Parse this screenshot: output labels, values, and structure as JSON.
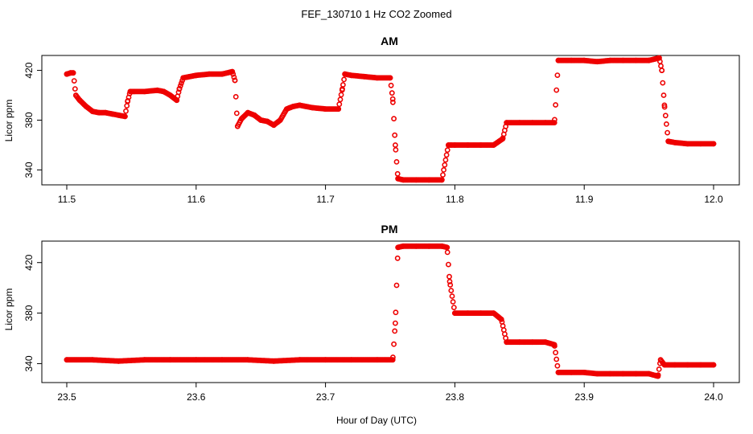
{
  "title": "FEF_130710  1 Hz CO2 Zoomed",
  "xlabel": "Hour of Day (UTC)",
  "colors": {
    "points": "#ee0000",
    "axes": "#000000",
    "background": "#ffffff"
  },
  "chart_data": [
    {
      "type": "scatter",
      "title": "AM",
      "xlabel": "",
      "ylabel": "Licor ppm",
      "xlim": [
        11.5,
        12.0
      ],
      "ylim": [
        328,
        432
      ],
      "xticks": [
        "11.5",
        "11.6",
        "11.7",
        "11.8",
        "11.9",
        "12.0"
      ],
      "yticks": [
        "340",
        "380",
        "420"
      ],
      "grid": false,
      "series": [
        {
          "x": [
            11.5,
            11.503,
            11.505,
            11.507,
            11.51,
            11.515,
            11.52,
            11.525,
            11.53,
            11.535,
            11.54,
            11.545,
            11.547,
            11.549,
            11.552,
            11.56,
            11.57,
            11.575,
            11.58,
            11.585,
            11.587,
            11.59,
            11.6,
            11.61,
            11.62,
            11.628,
            11.63,
            11.632,
            11.635,
            11.64,
            11.645,
            11.65,
            11.655,
            11.66,
            11.665,
            11.67,
            11.675,
            11.68,
            11.69,
            11.7,
            11.71,
            11.713,
            11.715,
            11.72,
            11.73,
            11.74,
            11.75,
            11.752,
            11.754,
            11.756,
            11.76,
            11.77,
            11.78,
            11.79,
            11.795,
            11.797,
            11.8,
            11.81,
            11.82,
            11.83,
            11.837,
            11.84,
            11.85,
            11.86,
            11.87,
            11.877,
            11.88,
            11.89,
            11.9,
            11.91,
            11.92,
            11.93,
            11.94,
            11.95,
            11.958,
            11.96,
            11.962,
            11.965,
            11.97,
            11.98,
            11.99,
            12.0
          ],
          "y": [
            417,
            418,
            418,
            400,
            396,
            391,
            387,
            386,
            386,
            385,
            384,
            383,
            395,
            403,
            403,
            403,
            404,
            403,
            400,
            396,
            405,
            414,
            416,
            417,
            417,
            419,
            412,
            375,
            381,
            386,
            384,
            380,
            379,
            376,
            380,
            389,
            391,
            392,
            390,
            389,
            389,
            405,
            417,
            416,
            415,
            414,
            414,
            397,
            360,
            333,
            332,
            332,
            332,
            332,
            360,
            360,
            360,
            360,
            360,
            360,
            365,
            378,
            378,
            378,
            378,
            378,
            428,
            428,
            428,
            427,
            428,
            428,
            428,
            428,
            430,
            420,
            392,
            363,
            362,
            361,
            361,
            361
          ]
        }
      ]
    },
    {
      "type": "scatter",
      "title": "PM",
      "xlabel": "",
      "ylabel": "Licor ppm",
      "xlim": [
        23.5,
        24.0
      ],
      "ylim": [
        325,
        437
      ],
      "xticks": [
        "23.5",
        "23.6",
        "23.7",
        "23.8",
        "23.9",
        "24.0"
      ],
      "yticks": [
        "340",
        "380",
        "420"
      ],
      "grid": false,
      "series": [
        {
          "x": [
            23.5,
            23.52,
            23.54,
            23.56,
            23.58,
            23.6,
            23.62,
            23.64,
            23.66,
            23.68,
            23.7,
            23.72,
            23.74,
            23.752,
            23.754,
            23.756,
            23.76,
            23.77,
            23.78,
            23.79,
            23.794,
            23.796,
            23.8,
            23.81,
            23.82,
            23.83,
            23.836,
            23.84,
            23.85,
            23.86,
            23.87,
            23.877,
            23.88,
            23.89,
            23.9,
            23.91,
            23.92,
            23.93,
            23.94,
            23.95,
            23.957,
            23.959,
            23.962,
            23.97,
            23.98,
            23.99,
            24.0
          ],
          "y": [
            343,
            343,
            342,
            343,
            343,
            343,
            343,
            343,
            342,
            343,
            343,
            343,
            343,
            343,
            372,
            432,
            433,
            433,
            433,
            433,
            432,
            405,
            380,
            380,
            380,
            380,
            375,
            357,
            357,
            357,
            357,
            355,
            333,
            333,
            333,
            332,
            332,
            332,
            332,
            332,
            330,
            343,
            339,
            339,
            339,
            339,
            339
          ]
        }
      ]
    }
  ]
}
